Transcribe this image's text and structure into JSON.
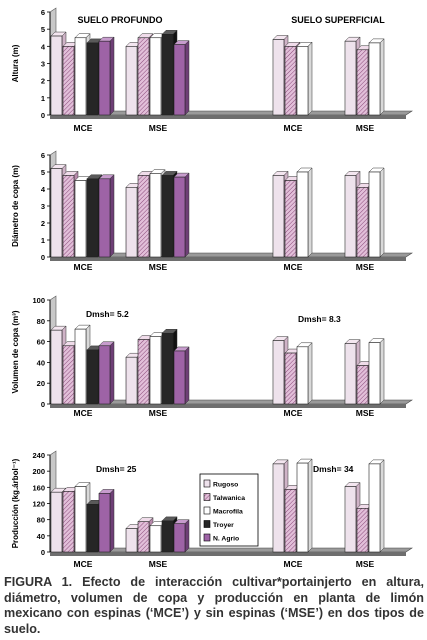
{
  "colors": {
    "rugoso": "#ffffff",
    "rugoso_shade": "#d8d8d8",
    "talwanica": "#e2bfd9",
    "talwanica_hatch": "#8a4a7a",
    "macrofila": "#ffffff",
    "troyer": "#262626",
    "n_agrio": "#9e63a6",
    "floor": "#9a9a9a",
    "wall": "#c8c8c8"
  },
  "legend": {
    "entries": [
      "Rugoso",
      "Talwanica",
      "Macrofila",
      "Troyer",
      "N. Agrio"
    ]
  },
  "chart_data": [
    {
      "type": "bar",
      "ylabel": "Altura (m)",
      "ylim": [
        0,
        6
      ],
      "yticks": [
        "0",
        "1",
        "2",
        "3",
        "4",
        "5",
        "6"
      ],
      "categories": [
        "MCE",
        "MSE",
        "MCE",
        "MSE"
      ],
      "group_labels": [
        "SUELO PROFUNDO",
        "SUELO SUPERFICIAL"
      ],
      "series": [
        {
          "name": "Rugoso",
          "values": [
            4.6,
            4.0,
            4.4,
            4.3
          ]
        },
        {
          "name": "Talwanica",
          "values": [
            4.0,
            4.5,
            4.0,
            3.8
          ]
        },
        {
          "name": "Macrofila",
          "values": [
            4.5,
            4.5,
            4.0,
            4.2
          ]
        },
        {
          "name": "Troyer",
          "values": [
            4.2,
            4.7,
            null,
            null
          ]
        },
        {
          "name": "N. Agrio",
          "values": [
            4.3,
            4.1,
            null,
            null
          ]
        }
      ]
    },
    {
      "type": "bar",
      "ylabel": "Diámetro de copa (m)",
      "ylim": [
        0,
        6
      ],
      "yticks": [
        "0",
        "1",
        "2",
        "3",
        "4",
        "5",
        "6"
      ],
      "categories": [
        "MCE",
        "MSE",
        "MCE",
        "MSE"
      ],
      "series": [
        {
          "name": "Rugoso",
          "values": [
            5.2,
            4.1,
            4.8,
            4.8
          ]
        },
        {
          "name": "Talwanica",
          "values": [
            4.8,
            4.8,
            4.5,
            4.1
          ]
        },
        {
          "name": "Macrofila",
          "values": [
            4.5,
            4.9,
            5.0,
            5.0
          ]
        },
        {
          "name": "Troyer",
          "values": [
            4.6,
            4.8,
            null,
            null
          ]
        },
        {
          "name": "N. Agrio",
          "values": [
            4.6,
            4.7,
            null,
            null
          ]
        }
      ]
    },
    {
      "type": "bar",
      "ylabel": "Volumen de copa (m³)",
      "ylim": [
        0,
        100
      ],
      "yticks": [
        "0",
        "20",
        "40",
        "60",
        "80",
        "100"
      ],
      "categories": [
        "MCE",
        "MSE",
        "MCE",
        "MSE"
      ],
      "annotations": [
        "Dmsh= 5.2",
        "Dmsh= 8.3"
      ],
      "series": [
        {
          "name": "Rugoso",
          "values": [
            71,
            45,
            61,
            58
          ]
        },
        {
          "name": "Talwanica",
          "values": [
            56,
            62,
            49,
            37
          ]
        },
        {
          "name": "Macrofila",
          "values": [
            72,
            65,
            55,
            59
          ]
        },
        {
          "name": "Troyer",
          "values": [
            52,
            68,
            null,
            null
          ]
        },
        {
          "name": "N. Agrio",
          "values": [
            56,
            51,
            null,
            null
          ]
        }
      ]
    },
    {
      "type": "bar",
      "ylabel": "Producción (kg.árbol⁻¹)",
      "ylim": [
        0,
        240
      ],
      "yticks": [
        "0",
        "40",
        "80",
        "120",
        "160",
        "200",
        "240"
      ],
      "categories": [
        "MCE",
        "MSE",
        "MCE",
        "MSE"
      ],
      "annotations": [
        "Dmsh= 25",
        "Dmsh= 34"
      ],
      "series": [
        {
          "name": "Rugoso",
          "values": [
            148,
            58,
            218,
            162
          ]
        },
        {
          "name": "Talwanica",
          "values": [
            150,
            75,
            155,
            108
          ]
        },
        {
          "name": "Macrofila",
          "values": [
            162,
            65,
            220,
            218
          ]
        },
        {
          "name": "Troyer",
          "values": [
            118,
            77,
            null,
            null
          ]
        },
        {
          "name": "N. Agrio",
          "values": [
            145,
            70,
            null,
            null
          ]
        }
      ]
    }
  ],
  "caption": {
    "lead": "FIGURA 1.",
    "text": " Efecto de interacción cultivar*portainjerto en altura, diámetro, volumen de copa y producción en planta de limón mexicano con espinas (‘MCE’) y sin espinas (‘MSE’) en dos tipos de suelo."
  }
}
